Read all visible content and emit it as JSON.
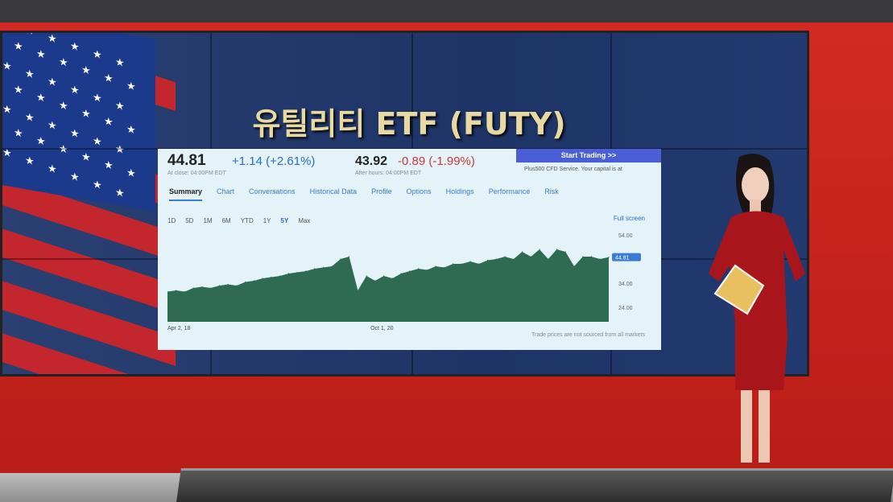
{
  "broadcast": {
    "title": "유틸리티 ETF (FUTY)"
  },
  "quote": {
    "close_price": "44.81",
    "close_change": "+1.14 (+2.61%)",
    "close_label": "At close: 04:00PM EDT",
    "after_price": "43.92",
    "after_change": "-0.89 (-1.99%)",
    "after_label": "After hours: 04:00PM EDT",
    "start_trading": "Start Trading >>",
    "ad_text": "Plus500 CFD Service. Your capital is at"
  },
  "tabs": [
    "Summary",
    "Chart",
    "Conversations",
    "Historical Data",
    "Profile",
    "Options",
    "Holdings",
    "Performance",
    "Risk"
  ],
  "ranges": [
    "1D",
    "5D",
    "1M",
    "6M",
    "YTD",
    "1Y",
    "5Y",
    "Max"
  ],
  "selected_range": "5Y",
  "full_screen": "Full screen",
  "footnote": "Trade prices are not sourced from all markets",
  "colors": {
    "area": "#2e6b52",
    "accent": "#3a7bd5",
    "negative": "#d0383a",
    "positive": "#2a6ad0"
  },
  "chart_data": {
    "type": "area",
    "x_tick_labels": [
      "Apr 2, 18",
      "Oct 1, 20"
    ],
    "y_tick_labels": [
      "54.00",
      "34.00",
      "24.00"
    ],
    "ylim": [
      18,
      58
    ],
    "current_value_label": "44.81",
    "values": [
      30.5,
      31,
      30.5,
      32,
      32.5,
      32,
      33,
      33.5,
      33,
      34.5,
      35,
      36,
      36.5,
      37,
      38,
      38.5,
      39,
      40,
      40.5,
      41,
      44,
      45,
      31,
      37,
      35,
      37,
      36,
      38,
      39,
      40,
      39.5,
      41,
      40.5,
      42,
      42,
      43,
      42,
      43.5,
      44,
      45,
      44,
      47,
      45,
      48,
      44,
      48,
      47,
      41,
      45,
      45,
      44,
      44.81
    ]
  }
}
